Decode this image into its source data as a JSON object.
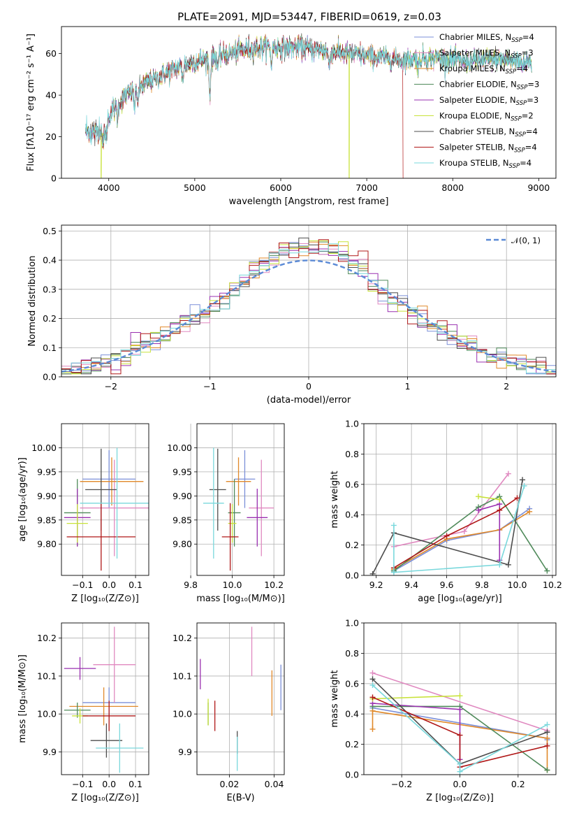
{
  "figure_title": "PLATE=2091, MJD=53447, FIBERID=0619, z=0.03",
  "colors": {
    "Chabrier MILES": "#7b8fd8",
    "Salpeter MILES": "#e089c0",
    "Kroupa MILES": "#e0892a",
    "Chabrier ELODIE": "#4f8a5a",
    "Salpeter ELODIE": "#9a30b0",
    "Kroupa ELODIE": "#c8e23a",
    "Chabrier STELIB": "#4d4d4d",
    "Salpeter STELIB": "#b01818",
    "Kroupa STELIB": "#7ad8dc",
    "normal": "#5b8ad6"
  },
  "chart_data": [
    {
      "id": "spectrum",
      "type": "line",
      "xlabel": "wavelength [Angstrom, rest frame]",
      "ylabel": "Flux [fλ10⁻¹⁷ erg cm⁻² s⁻¹ A⁻¹]",
      "xlim": [
        3450,
        9200
      ],
      "ylim": [
        0,
        73
      ],
      "xticks": [
        4000,
        5000,
        6000,
        7000,
        8000,
        9000
      ],
      "yticks": [
        0,
        20,
        40,
        60
      ],
      "legend_position": "upper right",
      "series": [
        {
          "name": "Chabrier MILES",
          "subscript": "SSP",
          "value": "=4"
        },
        {
          "name": "Salpeter MILES",
          "subscript": "SSP",
          "value": "=3"
        },
        {
          "name": "Kroupa MILES",
          "subscript": "SSP",
          "value": "=4"
        },
        {
          "name": "Chabrier ELODIE",
          "subscript": "SSP",
          "value": "=3"
        },
        {
          "name": "Salpeter ELODIE",
          "subscript": "SSP",
          "value": "=3"
        },
        {
          "name": "Kroupa ELODIE",
          "subscript": "SSP",
          "value": "=2"
        },
        {
          "name": "Chabrier STELIB",
          "subscript": "SSP",
          "value": "=4"
        },
        {
          "name": "Salpeter STELIB",
          "subscript": "SSP",
          "value": "=4"
        },
        {
          "name": "Kroupa STELIB",
          "subscript": "SSP",
          "value": "=4"
        }
      ],
      "continuum": {
        "x": [
          3730,
          3850,
          3950,
          4050,
          4200,
          4400,
          4600,
          4800,
          5000,
          5200,
          5400,
          5600,
          5800,
          6000,
          6200,
          6400,
          6600,
          6800,
          7000,
          7200,
          7400,
          7600,
          7800,
          8000,
          8200,
          8400,
          8600,
          8800,
          8920
        ],
        "y": [
          23,
          22,
          26,
          33,
          40,
          45,
          49,
          53,
          56,
          58,
          60,
          62,
          63,
          63,
          63,
          62,
          61,
          60,
          59,
          58,
          57,
          58,
          58,
          57,
          56,
          57,
          57,
          56,
          56
        ]
      },
      "absorption_lines": [
        {
          "x": 3934,
          "depth": 10
        },
        {
          "x": 3968,
          "depth": 9
        },
        {
          "x": 4101,
          "depth": 6
        },
        {
          "x": 4300,
          "depth": 8
        },
        {
          "x": 4340,
          "depth": 6
        },
        {
          "x": 4861,
          "depth": 5
        },
        {
          "x": 5175,
          "depth": 18
        },
        {
          "x": 5270,
          "depth": 5
        },
        {
          "x": 5890,
          "depth": 8
        },
        {
          "x": 6563,
          "depth": 7
        },
        {
          "x": 7600,
          "depth": 5
        }
      ],
      "dropouts": [
        {
          "series": "Kroupa ELODIE",
          "x": 3912,
          "y": 0
        },
        {
          "series": "Kroupa ELODIE",
          "x": 6795,
          "y": 0
        },
        {
          "series": "Salpeter STELIB",
          "x": 7420,
          "y": 0
        }
      ]
    },
    {
      "id": "residuals",
      "type": "histogram",
      "xlabel": "(data-model)/error",
      "ylabel": "Normed distribution",
      "xlim": [
        -2.5,
        2.5
      ],
      "ylim": [
        0,
        0.52
      ],
      "xticks": [
        -2,
        -1,
        0,
        1,
        2
      ],
      "yticks": [
        0.0,
        0.1,
        0.2,
        0.3,
        0.4,
        0.5
      ],
      "grid": true,
      "legend": "𝒩(0, 1)",
      "legend_position": "upper right",
      "bin_width": 0.1,
      "bin_start": -2.5,
      "reference_curve": "normal(0,1)"
    },
    {
      "id": "age_vs_Z",
      "type": "errorbar",
      "xlabel": "Z [log₁₀(Z/Z⊙)]",
      "ylabel": "age  [log₁₀(age/yr)]",
      "xlim": [
        -0.18,
        0.15
      ],
      "ylim": [
        9.735,
        10.05
      ],
      "xticks": [
        -0.1,
        0.0,
        0.1
      ],
      "yticks": [
        9.8,
        9.85,
        9.9,
        9.95,
        10.0
      ],
      "grid": true,
      "points": [
        {
          "series": "Chabrier MILES",
          "x": 0.0,
          "xerr": 0.1,
          "y": 9.935,
          "yerr": 0.06
        },
        {
          "series": "Salpeter MILES",
          "x": 0.02,
          "xerr": 0.13,
          "y": 9.875,
          "yerr": 0.1
        },
        {
          "series": "Kroupa MILES",
          "x": 0.01,
          "xerr": 0.12,
          "y": 9.93,
          "yerr": 0.05
        },
        {
          "series": "Chabrier ELODIE",
          "x": -0.12,
          "xerr": 0.05,
          "y": 9.865,
          "yerr": 0.07
        },
        {
          "series": "Salpeter ELODIE",
          "x": -0.12,
          "xerr": 0.05,
          "y": 9.855,
          "yerr": 0.06
        },
        {
          "series": "Kroupa ELODIE",
          "x": -0.12,
          "xerr": 0.04,
          "y": 9.843,
          "yerr": 0.04
        },
        {
          "series": "Chabrier STELIB",
          "x": -0.03,
          "xerr": 0.06,
          "y": 9.913,
          "yerr": 0.085
        },
        {
          "series": "Salpeter STELIB",
          "x": -0.03,
          "xerr": 0.13,
          "y": 9.815,
          "yerr": 0.07
        },
        {
          "series": "Kroupa STELIB",
          "x": 0.03,
          "xerr": 0.14,
          "y": 9.885,
          "yerr": 0.115
        }
      ]
    },
    {
      "id": "age_vs_mass",
      "type": "errorbar",
      "xlabel": "mass [log₁₀(M/M⊙)]",
      "ylabel": "",
      "xlim": [
        9.83,
        10.25
      ],
      "ylim": [
        9.735,
        10.05
      ],
      "xticks": [
        9.8,
        10.0,
        10.2
      ],
      "yticks": [
        9.8,
        9.85,
        9.9,
        9.95,
        10.0
      ],
      "grid": true,
      "points": [
        {
          "series": "Chabrier MILES",
          "x": 10.06,
          "xerr": 0.05,
          "y": 9.935,
          "yerr": 0.06
        },
        {
          "series": "Salpeter MILES",
          "x": 10.14,
          "xerr": 0.06,
          "y": 9.875,
          "yerr": 0.1
        },
        {
          "series": "Kroupa MILES",
          "x": 10.03,
          "xerr": 0.06,
          "y": 9.93,
          "yerr": 0.05
        },
        {
          "series": "Chabrier ELODIE",
          "x": 10.01,
          "xerr": 0.03,
          "y": 9.865,
          "yerr": 0.07
        },
        {
          "series": "Salpeter ELODIE",
          "x": 10.12,
          "xerr": 0.05,
          "y": 9.855,
          "yerr": 0.06
        },
        {
          "series": "Kroupa ELODIE",
          "x": 10.0,
          "xerr": 0.02,
          "y": 9.843,
          "yerr": 0.04
        },
        {
          "series": "Chabrier STELIB",
          "x": 9.93,
          "xerr": 0.04,
          "y": 9.913,
          "yerr": 0.085
        },
        {
          "series": "Salpeter STELIB",
          "x": 9.99,
          "xerr": 0.04,
          "y": 9.815,
          "yerr": 0.07
        },
        {
          "series": "Kroupa STELIB",
          "x": 9.91,
          "xerr": 0.05,
          "y": 9.885,
          "yerr": 0.115
        }
      ]
    },
    {
      "id": "weight_vs_age",
      "type": "line",
      "xlabel": "age  [log₁₀(age/yr)]",
      "ylabel": "mass weight",
      "xlim": [
        9.13,
        10.22
      ],
      "ylim": [
        0,
        1.0
      ],
      "xticks": [
        9.2,
        9.4,
        9.6,
        9.8,
        10.0,
        10.2
      ],
      "yticks": [
        0.0,
        0.2,
        0.4,
        0.6,
        0.8,
        1.0
      ],
      "grid": true,
      "series": [
        {
          "name": "Chabrier MILES",
          "x": [
            9.3,
            9.6,
            9.9,
            10.07
          ],
          "y": [
            0.03,
            0.23,
            0.3,
            0.44
          ]
        },
        {
          "name": "Salpeter MILES",
          "x": [
            9.3,
            9.7,
            9.95
          ],
          "y": [
            0.19,
            0.29,
            0.67
          ]
        },
        {
          "name": "Kroupa MILES",
          "x": [
            9.3,
            9.6,
            9.9,
            10.07
          ],
          "y": [
            0.04,
            0.24,
            0.3,
            0.42
          ]
        },
        {
          "name": "Chabrier ELODIE",
          "x": [
            9.3,
            9.78,
            9.9,
            10.17
          ],
          "y": [
            0.03,
            0.45,
            0.52,
            0.03
          ]
        },
        {
          "name": "Salpeter ELODIE",
          "x": [
            9.78,
            9.9,
            9.9
          ],
          "y": [
            0.43,
            0.47,
            0.1
          ]
        },
        {
          "name": "Kroupa ELODIE",
          "x": [
            9.78,
            9.9
          ],
          "y": [
            0.52,
            0.5
          ]
        },
        {
          "name": "Chabrier STELIB",
          "x": [
            9.18,
            9.3,
            9.95,
            10.03
          ],
          "y": [
            0.01,
            0.28,
            0.07,
            0.63
          ]
        },
        {
          "name": "Salpeter STELIB",
          "x": [
            9.3,
            9.6,
            9.9,
            10.0
          ],
          "y": [
            0.05,
            0.26,
            0.43,
            0.51
          ]
        },
        {
          "name": "Kroupa STELIB",
          "x": [
            9.3,
            9.3,
            9.9,
            10.04
          ],
          "y": [
            0.33,
            0.02,
            0.07,
            0.59
          ]
        }
      ]
    },
    {
      "id": "mass_vs_Z",
      "type": "errorbar",
      "xlabel": "Z [log₁₀(Z/Z⊙)]",
      "ylabel": "mass [log₁₀(M/M⊙)]",
      "xlim": [
        -0.18,
        0.15
      ],
      "ylim": [
        9.84,
        10.24
      ],
      "xticks": [
        -0.1,
        0.0,
        0.1
      ],
      "yticks": [
        9.9,
        10.0,
        10.1,
        10.2
      ],
      "grid": true,
      "points": [
        {
          "series": "Chabrier MILES",
          "x": 0.0,
          "xerr": 0.1,
          "y": 10.03,
          "yerr": 0.04
        },
        {
          "series": "Salpeter MILES",
          "x": 0.02,
          "xerr": 0.08,
          "y": 10.13,
          "yerr": 0.1
        },
        {
          "series": "Kroupa MILES",
          "x": -0.02,
          "xerr": 0.13,
          "y": 10.02,
          "yerr": 0.05
        },
        {
          "series": "Chabrier ELODIE",
          "x": -0.12,
          "xerr": 0.05,
          "y": 10.01,
          "yerr": 0.02
        },
        {
          "series": "Salpeter ELODIE",
          "x": -0.11,
          "xerr": 0.06,
          "y": 10.12,
          "yerr": 0.03
        },
        {
          "series": "Kroupa ELODIE",
          "x": -0.11,
          "xerr": 0.03,
          "y": 9.995,
          "yerr": 0.02
        },
        {
          "series": "Chabrier STELIB",
          "x": -0.01,
          "xerr": 0.06,
          "y": 9.93,
          "yerr": 0.045
        },
        {
          "series": "Salpeter STELIB",
          "x": 0.0,
          "xerr": 0.1,
          "y": 9.995,
          "yerr": 0.04
        },
        {
          "series": "Kroupa STELIB",
          "x": 0.04,
          "xerr": 0.09,
          "y": 9.91,
          "yerr": 0.065
        }
      ]
    },
    {
      "id": "mass_vs_EBV",
      "type": "errorbar",
      "xlabel": "E(B-V)",
      "ylabel": "",
      "xlim": [
        0.0055,
        0.0445
      ],
      "ylim": [
        9.84,
        10.24
      ],
      "xticks": [
        0.02,
        0.04
      ],
      "yticks": [
        9.9,
        10.0,
        10.1,
        10.2
      ],
      "grid": true,
      "points": [
        {
          "series": "Chabrier MILES",
          "x": 0.043,
          "y": 10.07,
          "yerr": 0.06
        },
        {
          "series": "Salpeter MILES",
          "x": 0.03,
          "y": 10.165,
          "yerr": 0.065
        },
        {
          "series": "Kroupa MILES",
          "x": 0.039,
          "y": 10.055,
          "yerr": 0.06
        },
        {
          "series": "Chabrier ELODIE",
          "x": 0.0105,
          "y": 10.0,
          "yerr": 0.03
        },
        {
          "series": "Salpeter ELODIE",
          "x": 0.007,
          "y": 10.105,
          "yerr": 0.04
        },
        {
          "series": "Kroupa ELODIE",
          "x": 0.0105,
          "y": 10.005,
          "yerr": 0.035
        },
        {
          "series": "Chabrier STELIB",
          "x": 0.0235,
          "y": 9.925,
          "yerr": 0.03
        },
        {
          "series": "Salpeter STELIB",
          "x": 0.0135,
          "y": 9.995,
          "yerr": 0.04
        },
        {
          "series": "Kroupa STELIB",
          "x": 0.0235,
          "y": 9.895,
          "yerr": 0.045
        }
      ]
    },
    {
      "id": "weight_vs_Z",
      "type": "line",
      "xlabel": "Z [log₁₀(Z/Z⊙)]",
      "ylabel": "mass weight",
      "xlim": [
        -0.33,
        0.33
      ],
      "ylim": [
        0,
        1.0
      ],
      "xticks": [
        -0.2,
        0.0,
        0.2
      ],
      "yticks": [
        0.0,
        0.2,
        0.4,
        0.6,
        0.8,
        1.0
      ],
      "grid": true,
      "series": [
        {
          "name": "Chabrier MILES",
          "x": [
            -0.3,
            0.3,
            0.3
          ],
          "y": [
            0.44,
            0.24,
            0.23
          ]
        },
        {
          "name": "Salpeter MILES",
          "x": [
            -0.3,
            0.3
          ],
          "y": [
            0.67,
            0.29
          ]
        },
        {
          "name": "Kroupa MILES",
          "x": [
            -0.3,
            -0.3,
            0.3,
            0.3
          ],
          "y": [
            0.3,
            0.42,
            0.24,
            0.03
          ]
        },
        {
          "name": "Chabrier ELODIE",
          "x": [
            -0.3,
            0.0,
            0.3
          ],
          "y": [
            0.45,
            0.45,
            0.03
          ]
        },
        {
          "name": "Salpeter ELODIE",
          "x": [
            -0.3,
            0.0,
            0.0
          ],
          "y": [
            0.47,
            0.43,
            0.1
          ]
        },
        {
          "name": "Kroupa ELODIE",
          "x": [
            -0.3,
            0.0
          ],
          "y": [
            0.5,
            0.52
          ]
        },
        {
          "name": "Chabrier STELIB",
          "x": [
            -0.3,
            0.0,
            0.3
          ],
          "y": [
            0.63,
            0.07,
            0.28
          ]
        },
        {
          "name": "Salpeter STELIB",
          "x": [
            -0.3,
            0.0,
            0.0,
            0.3
          ],
          "y": [
            0.51,
            0.26,
            0.05,
            0.19
          ]
        },
        {
          "name": "Kroupa STELIB",
          "x": [
            -0.3,
            0.0,
            0.0,
            0.3
          ],
          "y": [
            0.59,
            0.07,
            0.02,
            0.33
          ]
        }
      ]
    }
  ]
}
